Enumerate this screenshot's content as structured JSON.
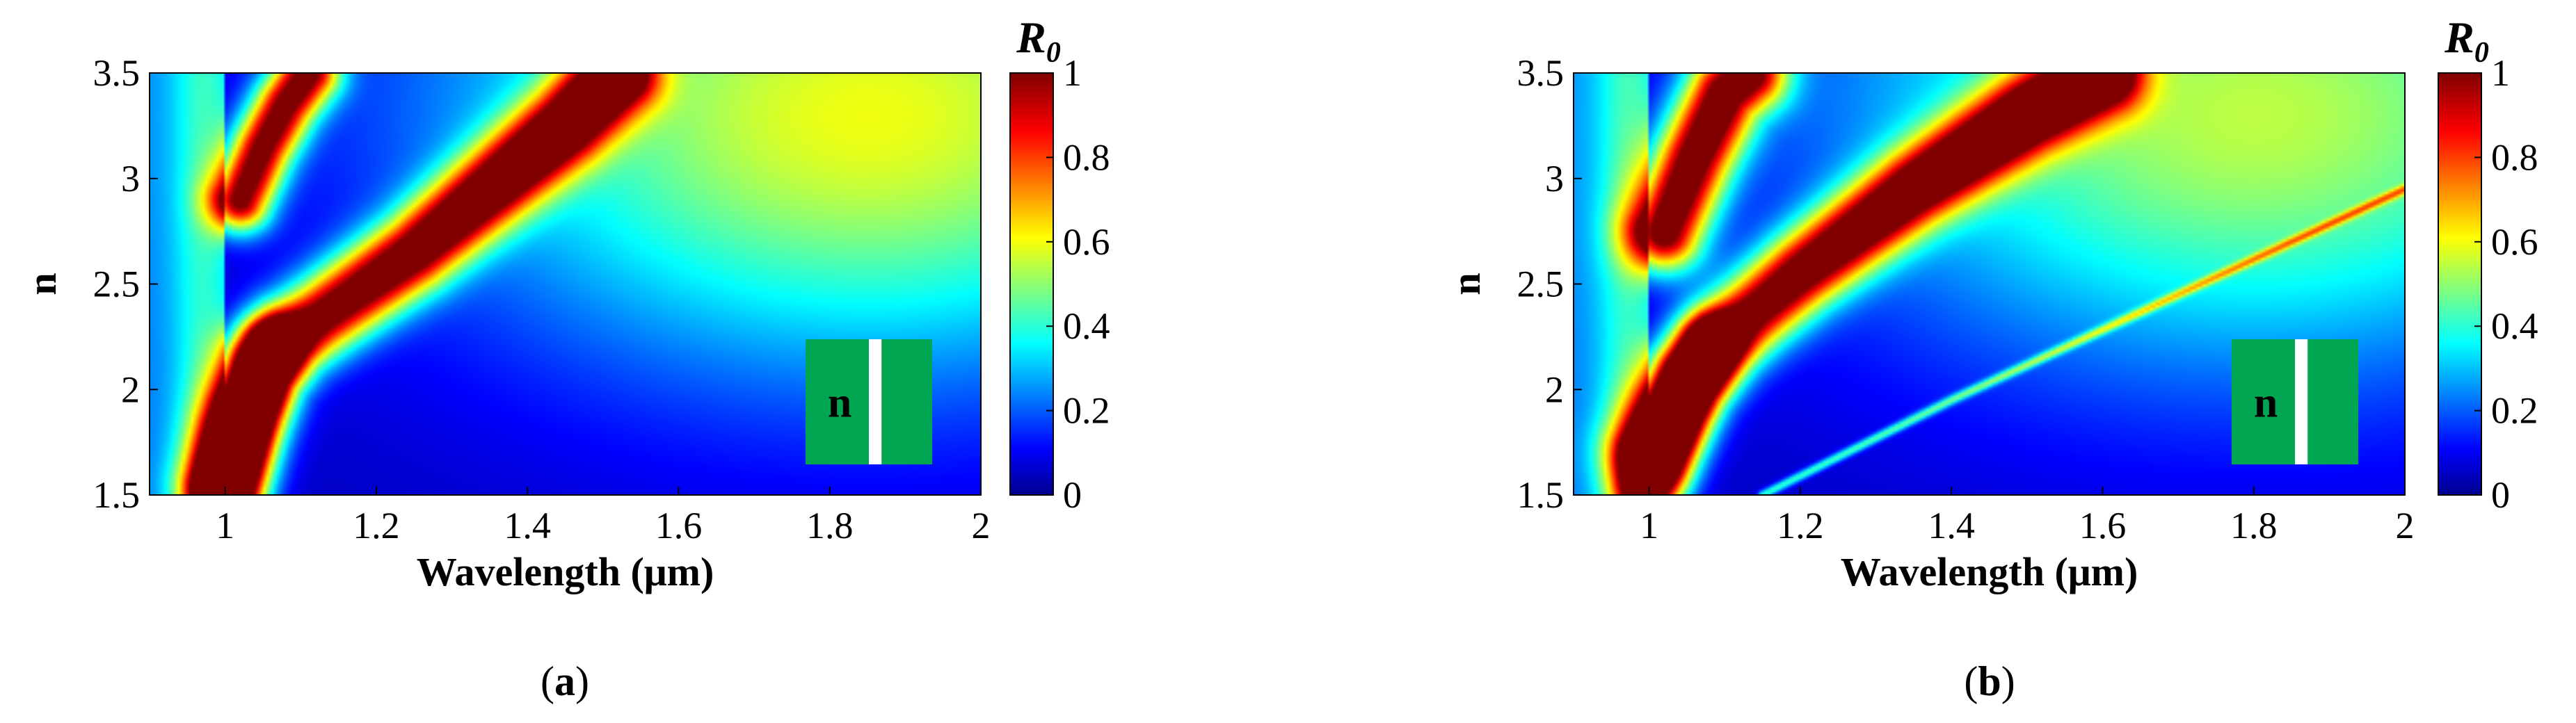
{
  "chart_data": [
    {
      "type": "heatmap",
      "panel_label": "a",
      "xlabel": "Wavelength (μm)",
      "ylabel": "n",
      "xlim": [
        0.9,
        2
      ],
      "ylim": [
        1.5,
        3.5
      ],
      "x_ticks": [
        1,
        1.2,
        1.4,
        1.6,
        1.8,
        2
      ],
      "y_ticks": [
        1.5,
        2,
        2.5,
        3,
        3.5
      ],
      "colorbar": {
        "title": "R",
        "title_subscript": "0",
        "range": [
          0,
          1
        ],
        "ticks": [
          0,
          0.2,
          0.4,
          0.6,
          0.8,
          1
        ],
        "colormap": "jet"
      },
      "inset": {
        "label": "n",
        "fill": "#00a651",
        "stripe": "#ffffff"
      },
      "ridges": [
        {
          "points": [
            [
              1.0,
              1.55
            ],
            [
              1.02,
              1.8
            ],
            [
              1.05,
              2.1
            ],
            [
              1.09,
              2.25
            ],
            [
              1.15,
              2.4
            ],
            [
              1.25,
              2.65
            ],
            [
              1.35,
              2.95
            ],
            [
              1.45,
              3.25
            ],
            [
              1.52,
              3.5
            ]
          ],
          "width": 0.05,
          "peak": 1.0
        },
        {
          "points": [
            [
              1.02,
              2.9
            ],
            [
              1.05,
              3.15
            ],
            [
              1.08,
              3.35
            ],
            [
              1.11,
              3.5
            ]
          ],
          "width": 0.04,
          "peak": 0.95
        },
        {
          "points": [
            [
              1.0,
              1.5
            ],
            [
              1.03,
              1.9
            ],
            [
              1.06,
              2.2
            ]
          ],
          "width": 0.04,
          "peak": 0.9
        }
      ],
      "background_glow": {
        "center": [
          1.85,
          3.3
        ],
        "peak": 0.55
      }
    },
    {
      "type": "heatmap",
      "panel_label": "b",
      "xlabel": "Wavelength (μm)",
      "ylabel": "n",
      "xlim": [
        0.9,
        2
      ],
      "ylim": [
        1.5,
        3.5
      ],
      "x_ticks": [
        1,
        1.2,
        1.4,
        1.6,
        1.8,
        2
      ],
      "y_ticks": [
        1.5,
        2,
        2.5,
        3,
        3.5
      ],
      "colorbar": {
        "title": "R",
        "title_subscript": "0",
        "range": [
          0,
          1
        ],
        "ticks": [
          0,
          0.2,
          0.4,
          0.6,
          0.8,
          1
        ],
        "colormap": "jet"
      },
      "inset": {
        "label": "n",
        "fill": "#00a651",
        "stripe": "#ffffff"
      },
      "ridges": [
        {
          "points": [
            [
              1.0,
              1.7
            ],
            [
              1.05,
              2.05
            ],
            [
              1.1,
              2.25
            ],
            [
              1.2,
              2.55
            ],
            [
              1.35,
              2.95
            ],
            [
              1.5,
              3.3
            ],
            [
              1.6,
              3.5
            ]
          ],
          "width": 0.05,
          "peak": 1.0
        },
        {
          "points": [
            [
              1.02,
              2.75
            ],
            [
              1.06,
              3.1
            ],
            [
              1.1,
              3.4
            ],
            [
              1.13,
              3.5
            ]
          ],
          "width": 0.05,
          "peak": 1.0
        },
        {
          "points": [
            [
              1.15,
              1.5
            ],
            [
              1.4,
              1.95
            ],
            [
              1.7,
              2.45
            ],
            [
              2.0,
              2.95
            ]
          ],
          "width": 0.006,
          "peak": 0.35
        },
        {
          "points": [
            [
              1.0,
              1.5
            ],
            [
              1.04,
              1.9
            ],
            [
              1.08,
              2.2
            ]
          ],
          "width": 0.04,
          "peak": 0.9
        }
      ],
      "background_glow": {
        "center": [
          1.8,
          3.3
        ],
        "peak": 0.5
      }
    }
  ]
}
